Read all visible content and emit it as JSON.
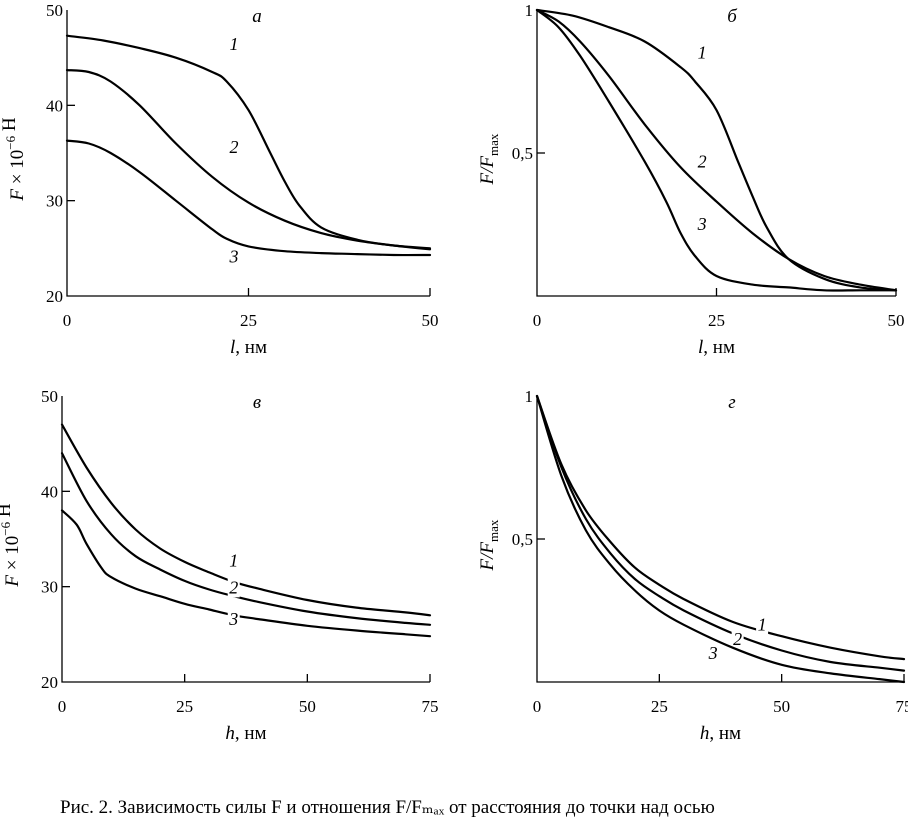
{
  "caption": "Рис. 2. Зависимость силы F и отношения F/Fₘₐₓ от расстояния до точки над осью",
  "chart_data": [
    {
      "type": "line",
      "panel": "а",
      "xlabel": "l, нм",
      "ylabel": "F × 10⁻⁶ Н",
      "xlim": [
        0,
        50
      ],
      "ylim": [
        20,
        50
      ],
      "xticks": [
        0,
        25,
        50
      ],
      "yticks": [
        20,
        30,
        40,
        50
      ],
      "grid": false,
      "series": [
        {
          "name": "1",
          "label_at": [
            23,
            45.8
          ],
          "x": [
            0,
            5,
            10,
            15,
            20,
            22,
            25,
            28,
            30,
            32,
            35,
            40,
            45,
            50
          ],
          "y": [
            47.3,
            46.8,
            46.0,
            45.0,
            43.5,
            42.5,
            39.5,
            35.0,
            32.0,
            29.5,
            27.2,
            25.9,
            25.3,
            25.0
          ]
        },
        {
          "name": "2",
          "label_at": [
            23,
            35.0
          ],
          "x": [
            0,
            3,
            6,
            10,
            15,
            20,
            25,
            30,
            35,
            40,
            45,
            50
          ],
          "y": [
            43.7,
            43.5,
            42.5,
            40.0,
            36.0,
            32.5,
            29.8,
            27.9,
            26.6,
            25.8,
            25.3,
            24.9
          ]
        },
        {
          "name": "3",
          "label_at": [
            23,
            23.5
          ],
          "x": [
            0,
            3,
            6,
            10,
            15,
            20,
            22,
            25,
            30,
            35,
            40,
            45,
            50
          ],
          "y": [
            36.3,
            36.0,
            35.0,
            33.0,
            30.0,
            27.0,
            26.0,
            25.2,
            24.7,
            24.5,
            24.4,
            24.3,
            24.3
          ]
        }
      ]
    },
    {
      "type": "line",
      "panel": "б",
      "xlabel": "l, нм",
      "ylabel": "F/Fmax",
      "xlim": [
        0,
        50
      ],
      "ylim": [
        0,
        1
      ],
      "xticks": [
        0,
        25,
        50
      ],
      "yticks": [
        0,
        0.5,
        1
      ],
      "ytick_labels": [
        "0",
        "0,5",
        "1"
      ],
      "grid": false,
      "series": [
        {
          "name": "1",
          "label_at": [
            23,
            0.83
          ],
          "x": [
            0,
            5,
            10,
            15,
            20,
            22,
            25,
            28,
            30,
            32,
            35,
            40,
            45,
            50
          ],
          "y": [
            1.0,
            0.98,
            0.94,
            0.89,
            0.8,
            0.75,
            0.65,
            0.47,
            0.35,
            0.24,
            0.13,
            0.06,
            0.03,
            0.02
          ]
        },
        {
          "name": "2",
          "label_at": [
            23,
            0.45
          ],
          "x": [
            0,
            3,
            6,
            10,
            15,
            20,
            25,
            30,
            35,
            40,
            45,
            50
          ],
          "y": [
            1.0,
            0.96,
            0.89,
            0.77,
            0.6,
            0.45,
            0.33,
            0.22,
            0.13,
            0.07,
            0.04,
            0.02
          ]
        },
        {
          "name": "3",
          "label_at": [
            23,
            0.23
          ],
          "x": [
            0,
            3,
            6,
            10,
            15,
            18,
            20,
            22,
            25,
            30,
            35,
            40,
            45,
            50
          ],
          "y": [
            1.0,
            0.94,
            0.84,
            0.68,
            0.47,
            0.33,
            0.22,
            0.14,
            0.07,
            0.04,
            0.03,
            0.02,
            0.02,
            0.02
          ]
        }
      ]
    },
    {
      "type": "line",
      "panel": "в",
      "xlabel": "h, нм",
      "ylabel": "F × 10⁻⁶ Н",
      "xlim": [
        0,
        75
      ],
      "ylim": [
        20,
        50
      ],
      "xticks": [
        0,
        25,
        50,
        75
      ],
      "yticks": [
        20,
        30,
        40,
        50
      ],
      "grid": false,
      "series": [
        {
          "name": "1",
          "label_at": [
            35,
            32.1
          ],
          "x": [
            0,
            5,
            10,
            15,
            20,
            25,
            30,
            35,
            40,
            50,
            60,
            70,
            75
          ],
          "y": [
            47.0,
            42.5,
            38.8,
            36.0,
            34.0,
            32.6,
            31.5,
            30.5,
            29.8,
            28.6,
            27.8,
            27.3,
            27.0
          ]
        },
        {
          "name": "2",
          "label_at": [
            35,
            29.3
          ],
          "x": [
            0,
            5,
            10,
            15,
            20,
            25,
            30,
            35,
            40,
            50,
            60,
            70,
            75
          ],
          "y": [
            44.0,
            39.0,
            35.5,
            33.2,
            31.8,
            30.6,
            29.7,
            29.0,
            28.4,
            27.4,
            26.7,
            26.2,
            26.0
          ]
        },
        {
          "name": "3",
          "label_at": [
            35,
            26.0
          ],
          "x": [
            0,
            3,
            5,
            8,
            10,
            15,
            20,
            25,
            30,
            35,
            40,
            50,
            60,
            70,
            75
          ],
          "y": [
            38.0,
            36.5,
            34.5,
            32.0,
            31.0,
            29.8,
            29.0,
            28.2,
            27.6,
            27.0,
            26.6,
            25.9,
            25.4,
            25.0,
            24.8
          ]
        }
      ]
    },
    {
      "type": "line",
      "panel": "г",
      "xlabel": "h, нм",
      "ylabel": "F/Fmax",
      "xlim": [
        0,
        75
      ],
      "ylim": [
        0,
        1
      ],
      "xticks": [
        0,
        25,
        50,
        75
      ],
      "yticks": [
        0,
        0.5,
        1
      ],
      "ytick_labels": [
        "0",
        "0,5",
        "1"
      ],
      "grid": false,
      "series": [
        {
          "name": "1",
          "label_at": [
            46,
            0.18
          ],
          "x": [
            0,
            5,
            10,
            15,
            20,
            25,
            30,
            40,
            50,
            60,
            70,
            75
          ],
          "y": [
            1.0,
            0.76,
            0.6,
            0.49,
            0.4,
            0.34,
            0.29,
            0.21,
            0.16,
            0.12,
            0.09,
            0.08
          ]
        },
        {
          "name": "2",
          "label_at": [
            41,
            0.13
          ],
          "x": [
            0,
            5,
            10,
            15,
            20,
            25,
            30,
            40,
            50,
            60,
            70,
            75
          ],
          "y": [
            1.0,
            0.75,
            0.57,
            0.45,
            0.36,
            0.3,
            0.25,
            0.17,
            0.11,
            0.07,
            0.05,
            0.04
          ]
        },
        {
          "name": "3",
          "label_at": [
            36,
            0.08
          ],
          "x": [
            0,
            5,
            10,
            15,
            20,
            25,
            30,
            40,
            50,
            60,
            70,
            75
          ],
          "y": [
            1.0,
            0.72,
            0.53,
            0.41,
            0.32,
            0.25,
            0.2,
            0.12,
            0.06,
            0.03,
            0.01,
            0.0
          ]
        }
      ]
    }
  ]
}
